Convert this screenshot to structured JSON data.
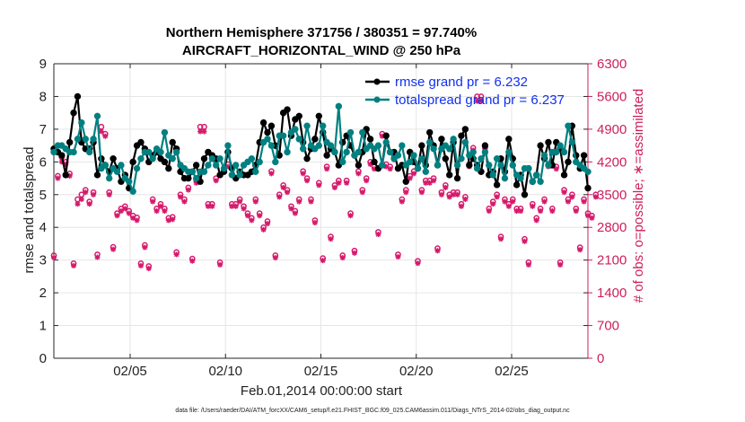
{
  "chart_data": {
    "type": "line",
    "title": [
      "Northern Hemisphere 371756 / 380351 = 97.740%",
      "AIRCRAFT_HORIZONTAL_WIND @ 250 hPa"
    ],
    "xlabel": "Feb.01,2014 00:00:00 start",
    "ylabel_left": "rmse and totalspread",
    "ylabel_right": "# of obs: o=possible; ∗=assimilated",
    "xlim": [
      1,
      29
    ],
    "ylim_left": [
      0,
      9
    ],
    "ylim_right": [
      0,
      6300
    ],
    "left_ticks": [
      "0",
      "1",
      "2",
      "3",
      "4",
      "5",
      "6",
      "7",
      "8",
      "9"
    ],
    "right_ticks": [
      "0",
      "700",
      "1400",
      "2100",
      "2800",
      "3500",
      "4200",
      "4900",
      "5600",
      "6300"
    ],
    "x_ticks": [
      {
        "x": 5,
        "label": "02/05"
      },
      {
        "x": 10,
        "label": "02/10"
      },
      {
        "x": 15,
        "label": "02/15"
      },
      {
        "x": 20,
        "label": "02/20"
      },
      {
        "x": 25,
        "label": "02/25"
      }
    ],
    "footnote": "data file: /Users/raeder/DAI/ATM_forcXX/CAM6_setup/f.e21.FHIST_BGC.f09_025.CAM6assim.011/Diags_NTrS_2014-02/obs_diag_output.nc",
    "colors": {
      "rmse": "#000000",
      "spread": "#008080",
      "obs": "#d6196b",
      "legend_text": "#1030f0",
      "right_axis": "#cc1f5c"
    },
    "series": [
      {
        "name": "rmse",
        "legend": "rmse grand pr = 6.232",
        "values": [
          6.4,
          6.3,
          6.2,
          5.6,
          6.6,
          7.5,
          8.0,
          6.6,
          6.4,
          6.4,
          6.6,
          5.6,
          6.1,
          5.9,
          5.7,
          6.1,
          5.8,
          5.4,
          5.6,
          5.2,
          6.0,
          6.5,
          6.6,
          6.4,
          6.0,
          6.2,
          6.3,
          6.1,
          6.0,
          5.8,
          6.6,
          6.4,
          5.7,
          5.5,
          5.5,
          5.7,
          5.9,
          5.4,
          6.1,
          6.3,
          6.2,
          6.1,
          5.6,
          5.7,
          6.3,
          5.8,
          5.5,
          5.7,
          5.6,
          5.6,
          5.7,
          5.9,
          6.6,
          7.2,
          6.9,
          7.1,
          6.5,
          6.2,
          7.5,
          7.6,
          6.8,
          7.3,
          7.4,
          6.6,
          6.1,
          6.4,
          6.7,
          7.4,
          6.9,
          6.2,
          6.4,
          6.3,
          5.9,
          6.6,
          6.8,
          6.5,
          6.2,
          5.9,
          6.3,
          7.0,
          6.7,
          6.0,
          5.8,
          5.9,
          6.8,
          6.3,
          6.3,
          5.8,
          5.9,
          5.4,
          6.3,
          6.0,
          5.8,
          6.5,
          5.9,
          6.9,
          6.5,
          5.9,
          6.7,
          6.1,
          5.6,
          6.6,
          5.5,
          6.8,
          7.0,
          5.9,
          6.1,
          5.9,
          5.7,
          6.5,
          5.6,
          5.7,
          5.3,
          6.1,
          5.7,
          6.7,
          6.1,
          5.3,
          5.6,
          5.0,
          5.8,
          5.4,
          5.6,
          6.5,
          6.1,
          6.6,
          5.9,
          6.6,
          6.4,
          5.6,
          6.0,
          7.1,
          6.2,
          5.8,
          6.2,
          5.2
        ]
      },
      {
        "name": "totalspread",
        "legend": "totalspread grand pr = 6.237",
        "values": [
          6.3,
          6.5,
          6.5,
          6.4,
          6.3,
          6.3,
          6.7,
          7.2,
          6.7,
          6.3,
          6.7,
          7.4,
          5.8,
          5.9,
          5.5,
          5.8,
          5.7,
          5.9,
          5.5,
          5.4,
          5.1,
          5.8,
          6.1,
          6.3,
          6.3,
          6.1,
          6.4,
          6.3,
          6.9,
          6.2,
          6.1,
          6.3,
          5.9,
          5.8,
          5.7,
          5.7,
          5.5,
          5.7,
          5.7,
          5.9,
          6.1,
          5.9,
          6.1,
          5.8,
          6.5,
          5.6,
          5.9,
          5.6,
          5.9,
          6.0,
          6.1,
          5.7,
          6.0,
          6.6,
          6.7,
          6.5,
          6.0,
          6.8,
          6.8,
          6.3,
          6.9,
          7.0,
          6.7,
          6.4,
          7.1,
          6.5,
          6.4,
          6.5,
          7.1,
          6.6,
          6.5,
          6.3,
          7.7,
          6.0,
          6.3,
          6.9,
          6.2,
          6.3,
          6.9,
          6.4,
          6.5,
          6.4,
          6.5,
          5.9,
          6.6,
          6.3,
          6.1,
          6.2,
          6.5,
          5.9,
          6.0,
          6.2,
          5.8,
          6.1,
          5.7,
          6.6,
          6.4,
          5.9,
          6.4,
          6.5,
          6.4,
          6.7,
          5.9,
          6.1,
          6.6,
          6.2,
          6.3,
          5.8,
          6.1,
          6.3,
          5.9,
          5.6,
          6.1,
          5.9,
          5.5,
          6.3,
          5.9,
          5.6,
          5.5,
          5.8,
          5.8,
          5.4,
          5.6,
          5.4,
          6.2,
          5.9,
          6.3,
          6.3,
          6.5,
          6.3,
          7.1,
          6.6,
          6.0,
          5.9,
          5.8,
          5.7
        ]
      },
      {
        "name": "obs_possible",
        "values": [
          2200,
          3900,
          4300,
          4200,
          3950,
          2030,
          3400,
          3500,
          3600,
          3350,
          3550,
          2220,
          4950,
          4800,
          3550,
          2380,
          3100,
          3200,
          3250,
          3150,
          3050,
          3010,
          2030,
          2420,
          1970,
          3400,
          3200,
          3300,
          3200,
          3000,
          3020,
          2270,
          3500,
          3400,
          3650,
          2130,
          3800,
          4950,
          4950,
          3300,
          3300,
          3850,
          2050,
          4050,
          4150,
          3300,
          3300,
          3400,
          3250,
          3100,
          3000,
          3400,
          3100,
          2800,
          2930,
          4000,
          2200,
          3500,
          3700,
          3600,
          3250,
          3150,
          3400,
          4000,
          3850,
          3400,
          2950,
          3750,
          2140,
          4100,
          2600,
          3700,
          3800,
          2200,
          3800,
          3100,
          2300,
          4000,
          3600,
          3850,
          4200,
          4100,
          2700,
          4800,
          4150,
          4100,
          4300,
          2220,
          3400,
          3600,
          3900,
          4000,
          2080,
          3600,
          3800,
          3800,
          3850,
          2350,
          3550,
          3700,
          3500,
          3550,
          3550,
          3300,
          3450,
          4150,
          4500,
          5600,
          5600,
          4500,
          3200,
          3350,
          3500,
          2600,
          3400,
          3300,
          3400,
          3200,
          3200,
          2550,
          2050,
          3300,
          3000,
          3200,
          3400,
          4150,
          3200,
          4100,
          2050,
          3600,
          3400,
          3500,
          3200,
          2370,
          3400,
          3100,
          3050,
          3500
        ]
      },
      {
        "name": "obs_assimilated",
        "values": [
          2150,
          3850,
          4200,
          4150,
          3900,
          1980,
          3300,
          3400,
          3550,
          3300,
          3500,
          2160,
          4850,
          4750,
          3500,
          2330,
          3050,
          3150,
          3200,
          3100,
          3000,
          2950,
          1980,
          2370,
          1920,
          3350,
          3150,
          3250,
          3150,
          2950,
          2970,
          2220,
          3450,
          3350,
          3600,
          2080,
          3750,
          4850,
          4850,
          3250,
          3250,
          3800,
          2000,
          4000,
          4100,
          3250,
          3250,
          3350,
          3200,
          3050,
          2950,
          3350,
          3050,
          2750,
          2880,
          3950,
          2150,
          3450,
          3650,
          3550,
          3200,
          3100,
          3350,
          3950,
          3800,
          3350,
          2900,
          3700,
          2090,
          4050,
          2550,
          3650,
          3750,
          2150,
          3750,
          3050,
          2250,
          3950,
          3550,
          3800,
          4150,
          4050,
          2650,
          4750,
          4100,
          4050,
          4250,
          2170,
          3350,
          3550,
          3850,
          3950,
          2030,
          3550,
          3750,
          3750,
          3800,
          2300,
          3500,
          3650,
          3450,
          3500,
          3500,
          3250,
          3400,
          4100,
          4450,
          5500,
          5500,
          4450,
          3150,
          3300,
          3450,
          2550,
          3350,
          3250,
          3350,
          3150,
          3150,
          2500,
          2000,
          3250,
          2950,
          3150,
          3350,
          4100,
          3150,
          4050,
          2000,
          3550,
          3350,
          3450,
          3150,
          2320,
          3350,
          3050,
          3000,
          3450
        ]
      }
    ]
  }
}
